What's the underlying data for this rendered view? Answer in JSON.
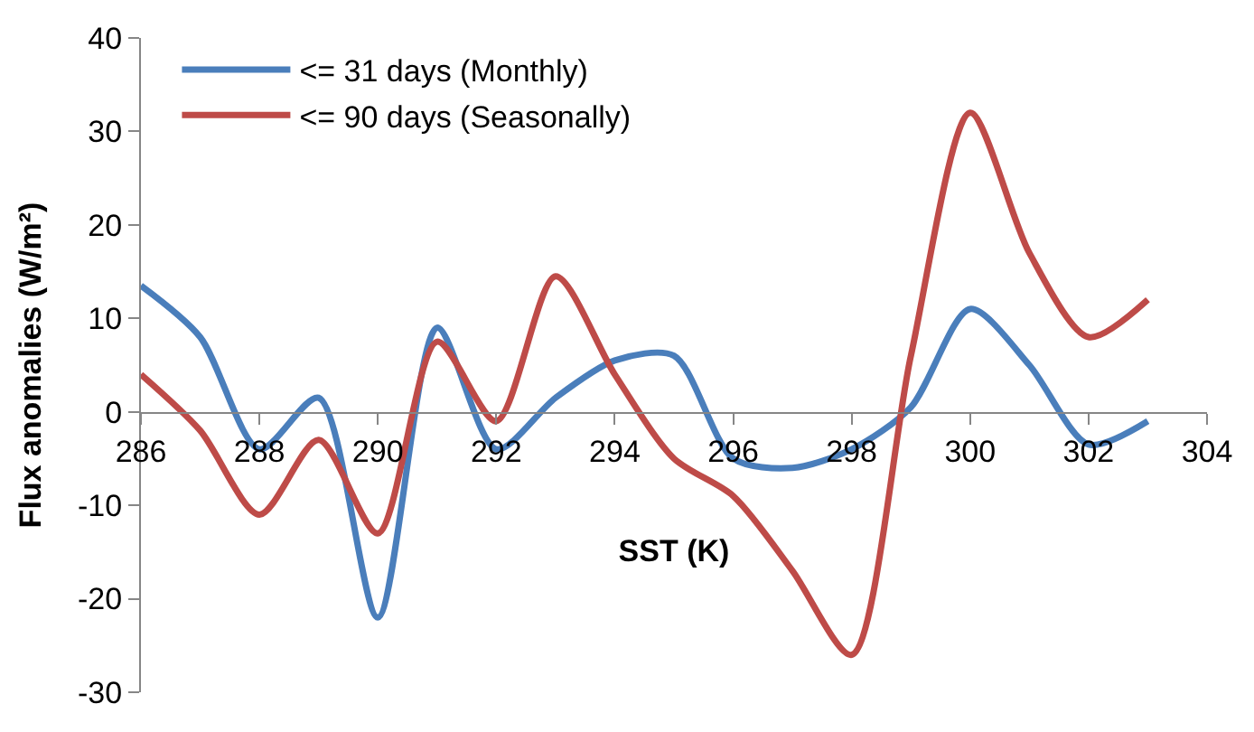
{
  "chart_data": {
    "type": "line",
    "xlabel": "SST (K)",
    "ylabel": "Flux anomalies (W/m²)",
    "x": [
      286,
      287,
      288,
      289,
      290,
      291,
      292,
      293,
      294,
      295,
      296,
      297,
      298,
      299,
      300,
      301,
      302,
      303
    ],
    "series": [
      {
        "name": "<= 31 days (Monthly)",
        "color": "#4a7ebb",
        "values": [
          13.5,
          8,
          -4,
          1.5,
          -22,
          9,
          -4,
          1.5,
          5.5,
          6,
          -5,
          -6,
          -4,
          0.5,
          11,
          5,
          -3.5,
          -1
        ]
      },
      {
        "name": "<= 90 days (Seasonally)",
        "color": "#be4b48",
        "values": [
          4,
          -2,
          -11,
          -3,
          -13,
          7.5,
          -1,
          14.5,
          4,
          -5,
          -9,
          -17,
          -26,
          6,
          32,
          17,
          8,
          12
        ]
      }
    ],
    "xlim": [
      286,
      304
    ],
    "xticks": [
      286,
      288,
      290,
      292,
      294,
      296,
      298,
      300,
      302,
      304
    ],
    "ylim": [
      -30,
      40
    ],
    "yticks": [
      -30,
      -20,
      -10,
      0,
      10,
      20,
      30,
      40
    ],
    "legend": "top left",
    "marker": "none",
    "line_style": "solid"
  }
}
